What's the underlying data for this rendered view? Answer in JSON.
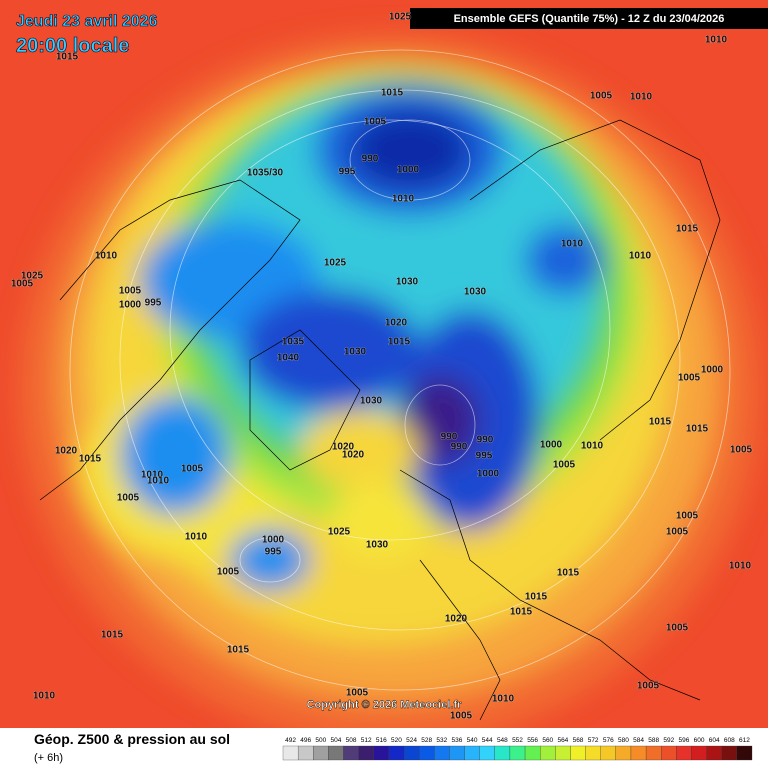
{
  "header": {
    "date": "Jeudi 23 avril 2026",
    "time": "20:00 locale",
    "model": "Ensemble GEFS  (Quantile 75%) - 12 Z du 23/04/2026"
  },
  "isobars": [
    "1025",
    "1015",
    "1010",
    "1005",
    "1010",
    "1015",
    "1005",
    "990",
    "995",
    "1000",
    "1035/30",
    "1010",
    "1010",
    "1015",
    "1010",
    "1025",
    "1010",
    "1025",
    "1005",
    "1005",
    "1000",
    "995",
    "1030",
    "1030",
    "1020",
    "1015",
    "1035",
    "1040",
    "1030",
    "1030",
    "1005",
    "1000",
    "1015",
    "1015",
    "990",
    "990",
    "990",
    "995",
    "1000",
    "1010",
    "1005",
    "1000",
    "1020",
    "1015",
    "1020",
    "1020",
    "1010",
    "1010",
    "1005",
    "1005",
    "1005",
    "1005",
    "1005",
    "1010",
    "1025",
    "1030",
    "1000",
    "995",
    "1005",
    "1015",
    "1010",
    "1015",
    "1015",
    "1020",
    "1015",
    "1015",
    "1005",
    "1010",
    "1005",
    "1010",
    "1005",
    "1005"
  ],
  "copyright": "Copyright © 2026 Meteociel.fr",
  "footer": {
    "title": "Géop. Z500 & pression au sol",
    "subtitle": "(+ 6h)"
  },
  "scale": {
    "values": [
      492,
      496,
      500,
      504,
      508,
      512,
      516,
      520,
      524,
      528,
      532,
      536,
      540,
      544,
      548,
      552,
      556,
      560,
      564,
      568,
      572,
      576,
      580,
      584,
      588,
      592,
      596,
      600,
      604,
      608,
      612
    ],
    "colors": [
      "#e8e8e8",
      "#c8c8c8",
      "#a0a0a0",
      "#787878",
      "#503c78",
      "#3c1e6e",
      "#28149a",
      "#1428c8",
      "#0a46d2",
      "#0a5ae6",
      "#1478f0",
      "#1e96f5",
      "#28b4fa",
      "#32d2fa",
      "#28e6c8",
      "#3cf08c",
      "#64f050",
      "#a0f03c",
      "#c8f032",
      "#f0f028",
      "#f5dc28",
      "#f5c828",
      "#f5aa28",
      "#f58c28",
      "#f06e28",
      "#eb5028",
      "#e63228",
      "#d21e1e",
      "#aa1414",
      "#781010",
      "#320808"
    ]
  }
}
